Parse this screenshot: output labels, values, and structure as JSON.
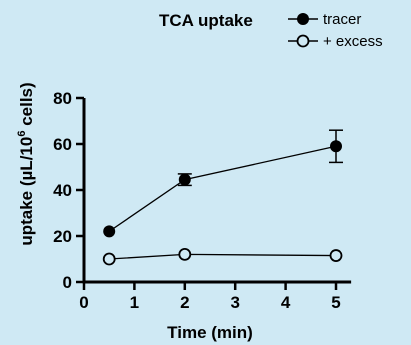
{
  "chart_data": {
    "type": "line",
    "title": "TCA uptake",
    "xlabel": "Time (min)",
    "ylabel_prefix": "uptake (",
    "ylabel_mu": "µ",
    "ylabel_mid": "L/10",
    "ylabel_sup": "6",
    "ylabel_suffix": " cells)",
    "xlim": [
      0,
      5.3
    ],
    "ylim": [
      0,
      80
    ],
    "x_ticks": [
      0,
      1,
      2,
      3,
      4,
      5
    ],
    "x_tick_labels": [
      "0",
      "1",
      "2",
      "3",
      "4",
      "5"
    ],
    "y_ticks": [
      0,
      20,
      40,
      60,
      80
    ],
    "y_tick_labels": [
      "0",
      "20",
      "40",
      "60",
      "80"
    ],
    "grid": false,
    "legend_position": "top-right",
    "x": [
      0.5,
      2,
      5
    ],
    "series": [
      {
        "name": "tracer",
        "marker": "filled-circle",
        "values": [
          22,
          44.5,
          59
        ],
        "error": [
          0,
          2.5,
          7
        ]
      },
      {
        "name": "+ excess",
        "marker": "open-circle",
        "values": [
          10,
          12,
          11.5
        ],
        "error": [
          0,
          0,
          0
        ]
      }
    ]
  },
  "colors": {
    "background": "#cfe9f4",
    "ink": "#000000"
  }
}
